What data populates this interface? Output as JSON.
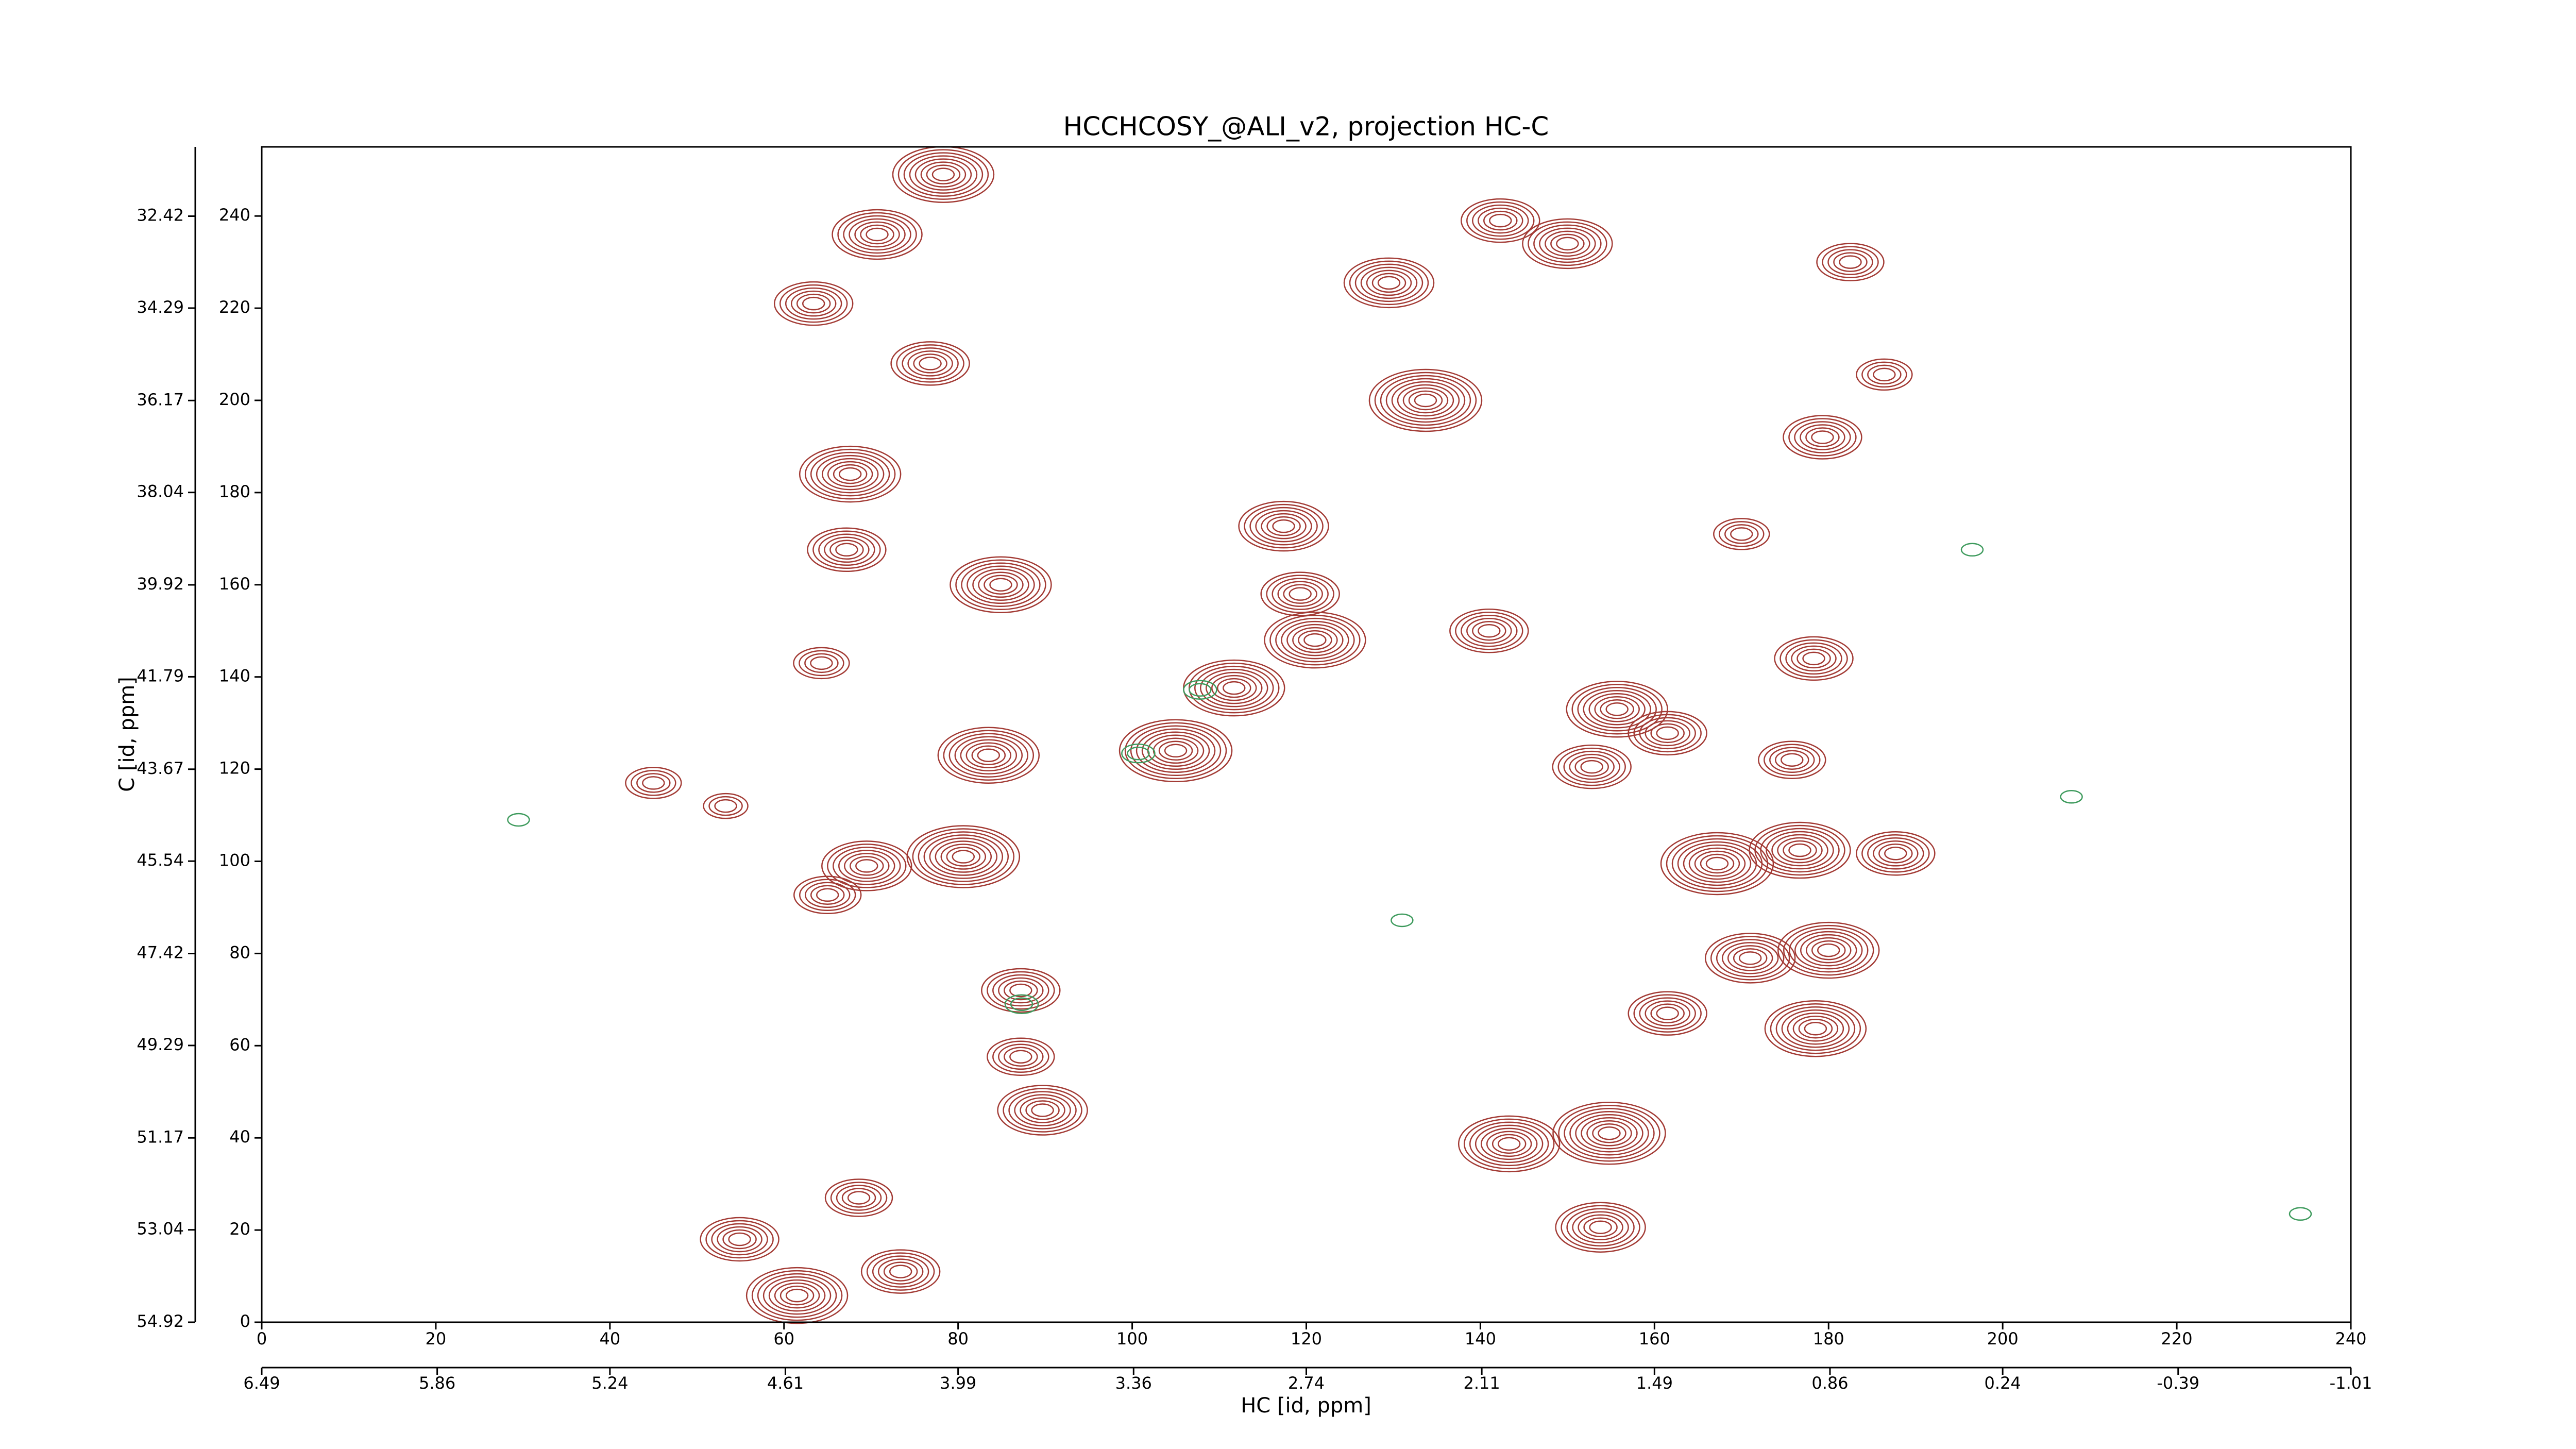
{
  "chart_data": {
    "type": "contour",
    "title": "HCCHCOSY_@ALI_v2, projection HC-C",
    "xlabel": "HC [id, ppm]",
    "ylabel": "C [id, ppm]",
    "xlim": [
      0,
      240
    ],
    "ylim": [
      0,
      255
    ],
    "xticks": [
      0,
      20,
      40,
      60,
      80,
      100,
      120,
      140,
      160,
      180,
      200,
      220,
      240
    ],
    "yticks": [
      0,
      20,
      40,
      60,
      80,
      100,
      120,
      140,
      160,
      180,
      200,
      220,
      240
    ],
    "x2lim": [
      6.49,
      -1.01
    ],
    "x2ticks": [
      6.49,
      5.86,
      5.24,
      4.61,
      3.99,
      3.36,
      2.74,
      2.11,
      1.49,
      0.86,
      0.24,
      -0.39,
      -1.01
    ],
    "y2lim": [
      54.92,
      31.01
    ],
    "y2ticks": [
      54.92,
      53.04,
      51.17,
      49.29,
      47.42,
      45.54,
      43.67,
      41.79,
      39.92,
      38.04,
      36.17,
      34.29,
      32.42
    ],
    "series": [
      {
        "color": "#a33b35",
        "x": [
          83.5,
          105,
          111.7,
          117.4,
          119.3,
          121,
          129.5,
          141,
          133.7,
          84.9,
          67.2,
          67.6,
          63.4,
          76.8,
          80.6,
          69.5,
          65,
          87.2,
          87.2,
          89.7,
          68.6,
          61.5,
          54.9,
          73.4,
          153.8,
          143.3,
          154.8,
          152.8,
          155.7,
          161.5,
          175.8,
          178.3,
          170,
          179.3,
          186.4,
          182.5,
          167.2,
          176.7,
          187.7,
          171,
          180,
          161.5,
          178.5,
          150,
          142.3,
          78.3,
          70.7,
          64.3,
          45,
          53.3
        ],
        "values": [
          123,
          124,
          137.6,
          172.7,
          158,
          148,
          225.5,
          150,
          200,
          160,
          167.6,
          184,
          221,
          208,
          101,
          99,
          92.7,
          72,
          57.6,
          46,
          27,
          5.8,
          18,
          11,
          20.6,
          38.7,
          41,
          120.5,
          133,
          127.8,
          122,
          144,
          171,
          192,
          205.6,
          230,
          99.5,
          102.4,
          101.7,
          79,
          80.7,
          67,
          63.7,
          234,
          239,
          249,
          236,
          143,
          117,
          112
        ],
        "levels": [
          8,
          9,
          8,
          7,
          6,
          8,
          7,
          6,
          9,
          8,
          6,
          8,
          6,
          6,
          9,
          7,
          5,
          6,
          5,
          7,
          5,
          8,
          6,
          6,
          7,
          8,
          9,
          6,
          8,
          6,
          5,
          6,
          4,
          6,
          4,
          5,
          9,
          8,
          6,
          7,
          8,
          6,
          8,
          7,
          6,
          8,
          7,
          4,
          4,
          3
        ]
      },
      {
        "color": "#3d9a5c",
        "x": [
          87.3,
          107.8,
          100.7,
          196.5,
          234.2,
          207.9,
          29.5,
          131
        ],
        "values": [
          69,
          137.2,
          123.4,
          167.6,
          23.5,
          114,
          109,
          87.2
        ],
        "levels": [
          2,
          2,
          2,
          1,
          1,
          1,
          1,
          1
        ]
      }
    ]
  }
}
